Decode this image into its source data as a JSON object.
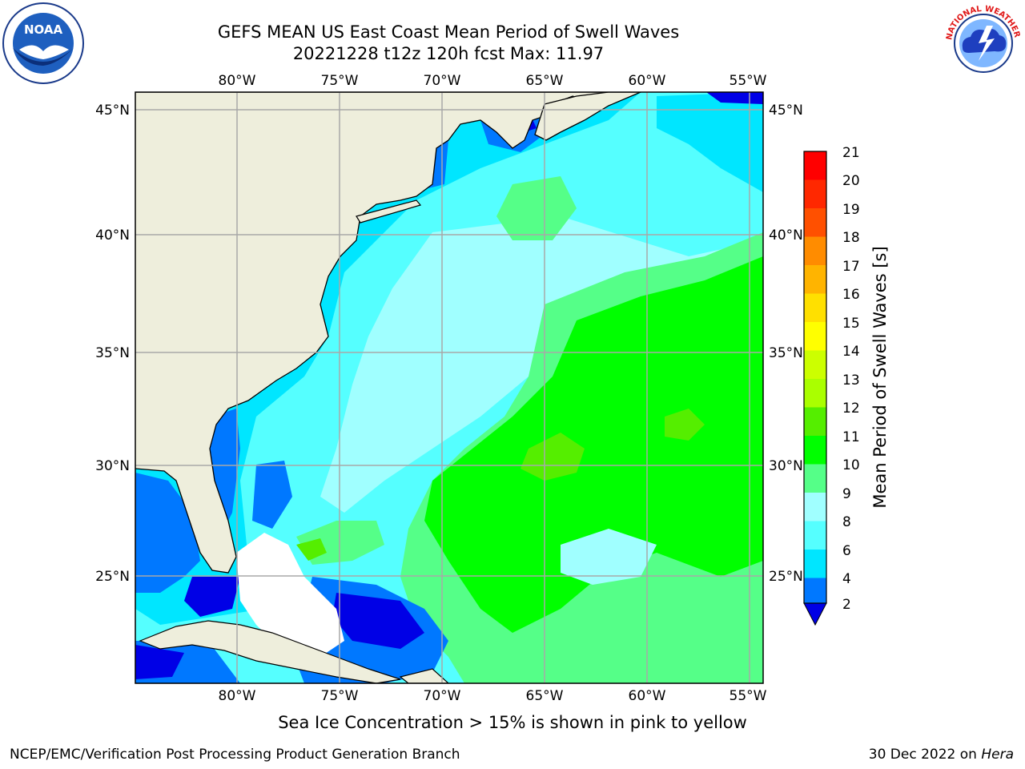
{
  "title": {
    "line1": "GEFS MEAN US East Coast Mean Period of Swell Waves",
    "line2": "20221228 t12z 120h fcst   Max: 11.97"
  },
  "axes": {
    "lon_labels": [
      "80°W",
      "75°W",
      "70°W",
      "65°W",
      "60°W",
      "55°W"
    ],
    "lat_labels": [
      "45°N",
      "40°N",
      "35°N",
      "30°N",
      "25°N"
    ]
  },
  "colorbar": {
    "title": "Mean Period of Swell Waves [s]",
    "ticks": [
      "2",
      "4",
      "6",
      "8",
      "9",
      "10",
      "11",
      "12",
      "13",
      "14",
      "15",
      "16",
      "17",
      "18",
      "19",
      "20",
      "21"
    ],
    "colors": [
      "#0028f0",
      "#0078ff",
      "#00e6ff",
      "#55ffff",
      "#a0ffff",
      "#55ff88",
      "#00ff00",
      "#55ee00",
      "#aaff00",
      "#ccff00",
      "#ffff00",
      "#ffe000",
      "#ffb400",
      "#ff8c00",
      "#ff5000",
      "#ff2800",
      "#ff0000"
    ],
    "under_color": "#0000e6"
  },
  "colors": {
    "land": "#eeeedc",
    "grid": "#a8a8a8"
  },
  "logos": {
    "noaa_text": "NOAA",
    "nws_text": "NATIONAL WEATHER SERVICE"
  },
  "ice_note": "Sea Ice Concentration > 15% is shown in pink to yellow",
  "footer": {
    "left": "NCEP/EMC/Verification Post Processing Product Generation Branch",
    "date": "30 Dec 2022 on ",
    "machine": "Hera"
  }
}
